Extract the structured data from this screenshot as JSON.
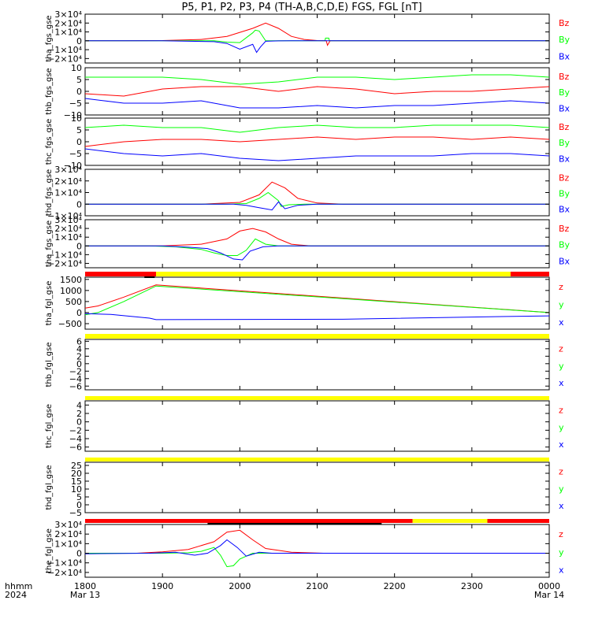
{
  "title": "P5, P1, P2, P3, P4 (TH-A,B,C,D,E) FGS, FGL [nT]",
  "colors": {
    "z": "#ff0000",
    "y": "#00ff00",
    "x": "#0000ff",
    "bar_red": "#ff0000",
    "bar_yellow": "#ffff00",
    "axis": "#000000"
  },
  "x_axis": {
    "label_rows": [
      "hhmm",
      "2024"
    ],
    "ticks": [
      {
        "t": 0,
        "hhmm": "1800",
        "date": "Mar 13"
      },
      {
        "t": 60,
        "hhmm": "1900",
        "date": ""
      },
      {
        "t": 120,
        "hhmm": "2000",
        "date": ""
      },
      {
        "t": 180,
        "hhmm": "2100",
        "date": ""
      },
      {
        "t": 240,
        "hhmm": "2200",
        "date": ""
      },
      {
        "t": 300,
        "hhmm": "2300",
        "date": ""
      },
      {
        "t": 360,
        "hhmm": "0000",
        "date": "Mar 14"
      }
    ],
    "range_minutes": [
      0,
      360
    ]
  },
  "chart_data": [
    {
      "type": "line",
      "ylabel": "tha_fgs_gse",
      "ylim": [
        -25000,
        30000
      ],
      "yticks": [
        {
          "v": 30000,
          "label": "3×10⁴"
        },
        {
          "v": 20000,
          "label": "2×10⁴"
        },
        {
          "v": 10000,
          "label": "1×10⁴"
        },
        {
          "v": 0,
          "label": "0"
        },
        {
          "v": -10000,
          "label": "−1×10⁴"
        },
        {
          "v": -20000,
          "label": "−2×10⁴"
        }
      ],
      "legend": [
        "Bz",
        "By",
        "Bx"
      ],
      "series": [
        {
          "name": "Bz",
          "color": "z",
          "x": [
            0,
            30,
            60,
            90,
            110,
            130,
            140,
            150,
            160,
            170,
            180,
            187,
            188,
            190,
            360
          ],
          "y": [
            0,
            0,
            300,
            1500,
            5000,
            14000,
            20000,
            14000,
            5000,
            1500,
            300,
            0,
            -5000,
            0,
            0
          ]
        },
        {
          "name": "By",
          "color": "y",
          "x": [
            0,
            60,
            100,
            110,
            120,
            130,
            132,
            135,
            140,
            150,
            160,
            170,
            180,
            186,
            186.5,
            189,
            189.5,
            360
          ],
          "y": [
            0,
            0,
            0,
            -1500,
            -2000,
            9000,
            12000,
            11000,
            0,
            0,
            0,
            0,
            0,
            0,
            3000,
            3000,
            0,
            0
          ]
        },
        {
          "name": "Bx",
          "color": "x",
          "x": [
            0,
            60,
            100,
            110,
            120,
            130,
            133,
            136,
            140,
            150,
            160,
            170,
            180,
            360
          ],
          "y": [
            0,
            0,
            -1000,
            -3000,
            -9500,
            -4000,
            -13000,
            -7000,
            -500,
            -100,
            0,
            0,
            0,
            0
          ]
        }
      ]
    },
    {
      "type": "line",
      "ylabel": "thb_fgs_gse",
      "ylim": [
        -10,
        10
      ],
      "yticks": [
        {
          "v": 10,
          "label": "10"
        },
        {
          "v": 5,
          "label": "5"
        },
        {
          "v": 0,
          "label": "0"
        },
        {
          "v": -5,
          "label": "−5"
        },
        {
          "v": -10,
          "label": "−10"
        }
      ],
      "legend": [
        "Bz",
        "By",
        "Bx"
      ],
      "series": [
        {
          "name": "Bz",
          "color": "z",
          "x": [
            0,
            30,
            60,
            90,
            120,
            150,
            180,
            210,
            240,
            270,
            300,
            330,
            360
          ],
          "y": [
            -1,
            -2,
            1,
            2,
            2,
            0,
            2,
            1,
            -1,
            0,
            0,
            1,
            2
          ]
        },
        {
          "name": "By",
          "color": "y",
          "x": [
            0,
            30,
            60,
            90,
            120,
            150,
            180,
            210,
            240,
            270,
            300,
            330,
            360
          ],
          "y": [
            6,
            6,
            6,
            5,
            3,
            4,
            6,
            6,
            5,
            6,
            7,
            7,
            6
          ]
        },
        {
          "name": "Bx",
          "color": "x",
          "x": [
            0,
            30,
            60,
            90,
            120,
            150,
            180,
            210,
            240,
            270,
            300,
            330,
            360
          ],
          "y": [
            -3,
            -5,
            -5,
            -4,
            -7,
            -7,
            -6,
            -7,
            -6,
            -6,
            -5,
            -4,
            -5
          ]
        }
      ]
    },
    {
      "type": "line",
      "ylabel": "thc_fgs_gse",
      "ylim": [
        -10,
        10
      ],
      "yticks": [
        {
          "v": 10,
          "label": "10"
        },
        {
          "v": 5,
          "label": "5"
        },
        {
          "v": 0,
          "label": "0"
        },
        {
          "v": -5,
          "label": "−5"
        },
        {
          "v": -10,
          "label": "−10"
        }
      ],
      "legend": [
        "Bz",
        "By",
        "Bx"
      ],
      "series": [
        {
          "name": "Bz",
          "color": "z",
          "x": [
            0,
            30,
            60,
            90,
            120,
            150,
            180,
            210,
            240,
            270,
            300,
            330,
            360
          ],
          "y": [
            -2,
            0,
            1,
            1,
            0,
            1,
            2,
            1,
            2,
            2,
            1,
            2,
            1
          ]
        },
        {
          "name": "By",
          "color": "y",
          "x": [
            0,
            30,
            60,
            90,
            120,
            150,
            180,
            210,
            240,
            270,
            300,
            330,
            360
          ],
          "y": [
            6,
            7,
            6,
            6,
            4,
            6,
            7,
            6,
            6,
            7,
            7,
            7,
            6
          ]
        },
        {
          "name": "Bx",
          "color": "x",
          "x": [
            0,
            30,
            60,
            90,
            120,
            150,
            180,
            210,
            240,
            270,
            300,
            330,
            360
          ],
          "y": [
            -3,
            -5,
            -6,
            -5,
            -7,
            -8,
            -7,
            -6,
            -6,
            -6,
            -5,
            -5,
            -6
          ]
        }
      ]
    },
    {
      "type": "line",
      "ylabel": "thd_fgs_gse",
      "ylim": [
        -10000,
        30000
      ],
      "yticks": [
        {
          "v": 30000,
          "label": "3×10⁴"
        },
        {
          "v": 20000,
          "label": "2×10⁴"
        },
        {
          "v": 10000,
          "label": "1×10⁴"
        },
        {
          "v": 0,
          "label": "0"
        },
        {
          "v": -10000,
          "label": "−1×10⁴"
        }
      ],
      "legend": [
        "Bz",
        "By",
        "Bx"
      ],
      "series": [
        {
          "name": "Bz",
          "color": "z",
          "x": [
            0,
            90,
            120,
            135,
            145,
            155,
            165,
            180,
            200,
            360
          ],
          "y": [
            0,
            0,
            1500,
            8000,
            19000,
            14000,
            5000,
            1000,
            0,
            0
          ]
        },
        {
          "name": "By",
          "color": "y",
          "x": [
            0,
            110,
            125,
            135,
            142,
            150,
            152,
            158,
            170,
            190,
            360
          ],
          "y": [
            0,
            0,
            500,
            5000,
            10000,
            3000,
            -2000,
            -500,
            0,
            0,
            0
          ]
        },
        {
          "name": "Bx",
          "color": "x",
          "x": [
            0,
            115,
            125,
            135,
            145,
            150,
            155,
            165,
            180,
            360
          ],
          "y": [
            0,
            0,
            -1000,
            -3000,
            -5000,
            2000,
            -4000,
            -1000,
            0,
            0
          ]
        }
      ]
    },
    {
      "type": "line",
      "ylabel": "the_fgs_gse",
      "ylim": [
        -25000,
        30000
      ],
      "yticks": [
        {
          "v": 30000,
          "label": "3×10⁴"
        },
        {
          "v": 20000,
          "label": "2×10⁴"
        },
        {
          "v": 10000,
          "label": "1×10⁴"
        },
        {
          "v": 0,
          "label": "0"
        },
        {
          "v": -10000,
          "label": "−1×10⁴"
        },
        {
          "v": -20000,
          "label": "−2×10⁴"
        }
      ],
      "legend": [
        "Bz",
        "By",
        "Bx"
      ],
      "series": [
        {
          "name": "Bz",
          "color": "z",
          "x": [
            0,
            60,
            90,
            110,
            120,
            130,
            140,
            150,
            160,
            175,
            360
          ],
          "y": [
            0,
            0,
            2000,
            8000,
            17000,
            20000,
            16000,
            8000,
            2000,
            0,
            0
          ]
        },
        {
          "name": "By",
          "color": "y",
          "x": [
            0,
            50,
            70,
            90,
            100,
            110,
            118,
            125,
            132,
            140,
            150,
            170,
            360
          ],
          "y": [
            0,
            0,
            -1000,
            -4000,
            -8000,
            -11000,
            -11000,
            -5000,
            8000,
            2000,
            0,
            0,
            0
          ]
        },
        {
          "name": "Bx",
          "color": "x",
          "x": [
            0,
            60,
            80,
            95,
            105,
            115,
            122,
            128,
            138,
            150,
            170,
            360
          ],
          "y": [
            0,
            0,
            -1500,
            -3000,
            -8000,
            -15000,
            -16000,
            -6000,
            -1000,
            0,
            0,
            0
          ]
        }
      ]
    },
    {
      "type": "line",
      "ylabel": "tha_fgl_gse",
      "ylim": [
        -750,
        1600
      ],
      "yticks": [
        {
          "v": 1500,
          "label": "1500"
        },
        {
          "v": 1000,
          "label": "1000"
        },
        {
          "v": 500,
          "label": "500"
        },
        {
          "v": 0,
          "label": "0"
        },
        {
          "v": -500,
          "label": "−500"
        }
      ],
      "legend": [
        "z",
        "y",
        "x"
      ],
      "status_bar": {
        "segments": [
          {
            "from": 0,
            "to": 55,
            "color": "bar_red"
          },
          {
            "from": 55,
            "to": 330,
            "color": "bar_yellow"
          },
          {
            "from": 330,
            "to": 360,
            "color": "bar_red"
          }
        ],
        "marks": [
          {
            "from": 46,
            "to": 54
          }
        ]
      },
      "series": [
        {
          "name": "z",
          "color": "z",
          "x": [
            0,
            10,
            30,
            55,
            360
          ],
          "y": [
            200,
            300,
            700,
            1250,
            0
          ]
        },
        {
          "name": "y",
          "color": "y",
          "x": [
            0,
            10,
            30,
            55,
            360
          ],
          "y": [
            -100,
            0,
            500,
            1200,
            0
          ]
        },
        {
          "name": "x",
          "color": "x",
          "x": [
            0,
            20,
            50,
            55,
            200,
            300,
            360
          ],
          "y": [
            -50,
            -80,
            -250,
            -320,
            -300,
            -200,
            -150
          ]
        }
      ]
    },
    {
      "type": "line",
      "ylabel": "thb_fgl_gse",
      "ylim": [
        -7,
        6.5
      ],
      "yticks": [
        {
          "v": 6,
          "label": "6"
        },
        {
          "v": 4,
          "label": "4"
        },
        {
          "v": 2,
          "label": "2"
        },
        {
          "v": 0,
          "label": "0"
        },
        {
          "v": -2,
          "label": "−2"
        },
        {
          "v": -4,
          "label": "−4"
        },
        {
          "v": -6,
          "label": "−6"
        }
      ],
      "legend": [
        "z",
        "y",
        "x"
      ],
      "status_bar": {
        "segments": [
          {
            "from": 0,
            "to": 360,
            "color": "bar_yellow"
          }
        ],
        "marks": []
      },
      "series": []
    },
    {
      "type": "line",
      "ylabel": "thc_fgl_gse",
      "ylim": [
        -7,
        5
      ],
      "yticks": [
        {
          "v": 4,
          "label": "4"
        },
        {
          "v": 2,
          "label": "2"
        },
        {
          "v": 0,
          "label": "0"
        },
        {
          "v": -2,
          "label": "−2"
        },
        {
          "v": -4,
          "label": "−4"
        },
        {
          "v": -6,
          "label": "−6"
        }
      ],
      "legend": [
        "z",
        "y",
        "x"
      ],
      "status_bar": {
        "segments": [
          {
            "from": 0,
            "to": 360,
            "color": "bar_yellow"
          }
        ],
        "marks": []
      },
      "series": []
    },
    {
      "type": "line",
      "ylabel": "thd_fgl_gse",
      "ylim": [
        -5,
        27
      ],
      "yticks": [
        {
          "v": 25,
          "label": "25"
        },
        {
          "v": 20,
          "label": "20"
        },
        {
          "v": 15,
          "label": "15"
        },
        {
          "v": 10,
          "label": "10"
        },
        {
          "v": 5,
          "label": "5"
        },
        {
          "v": 0,
          "label": "0"
        },
        {
          "v": -5,
          "label": "−5"
        }
      ],
      "legend": [
        "z",
        "y",
        "x"
      ],
      "status_bar": {
        "segments": [
          {
            "from": 0,
            "to": 360,
            "color": "bar_yellow"
          }
        ],
        "marks": []
      },
      "series": []
    },
    {
      "type": "line",
      "ylabel": "the_fgl_gse",
      "ylim": [
        -25000,
        30000
      ],
      "yticks": [
        {
          "v": 30000,
          "label": "3×10⁴"
        },
        {
          "v": 20000,
          "label": "2×10⁴"
        },
        {
          "v": 10000,
          "label": "1×10⁴"
        },
        {
          "v": 0,
          "label": "0"
        },
        {
          "v": -10000,
          "label": "−1×10⁴"
        },
        {
          "v": -20000,
          "label": "−2×10⁴"
        }
      ],
      "legend": [
        "z",
        "y",
        "x"
      ],
      "status_bar": {
        "segments": [
          {
            "from": 0,
            "to": 254,
            "color": "bar_red"
          },
          {
            "from": 254,
            "to": 312,
            "color": "bar_yellow"
          },
          {
            "from": 312,
            "to": 360,
            "color": "bar_red"
          }
        ],
        "marks": [
          {
            "from": 95,
            "to": 230
          }
        ]
      },
      "series": [
        {
          "name": "z",
          "color": "z",
          "x": [
            0,
            40,
            60,
            80,
            100,
            110,
            120,
            130,
            140,
            160,
            185,
            360
          ],
          "y": [
            0,
            0,
            1500,
            4000,
            12000,
            22000,
            24000,
            14000,
            5000,
            1000,
            0,
            0
          ]
        },
        {
          "name": "y",
          "color": "y",
          "x": [
            0,
            60,
            80,
            90,
            100,
            105,
            110,
            115,
            120,
            130,
            140,
            170,
            360
          ],
          "y": [
            0,
            0,
            500,
            2000,
            6000,
            -2000,
            -14000,
            -13000,
            -6000,
            0,
            0,
            0,
            0
          ]
        },
        {
          "name": "x",
          "color": "x",
          "x": [
            0,
            50,
            70,
            85,
            95,
            105,
            110,
            118,
            125,
            135,
            145,
            360
          ],
          "y": [
            -500,
            0,
            1000,
            -2000,
            0,
            8000,
            14000,
            6000,
            -3000,
            1000,
            0,
            0
          ]
        }
      ]
    }
  ]
}
